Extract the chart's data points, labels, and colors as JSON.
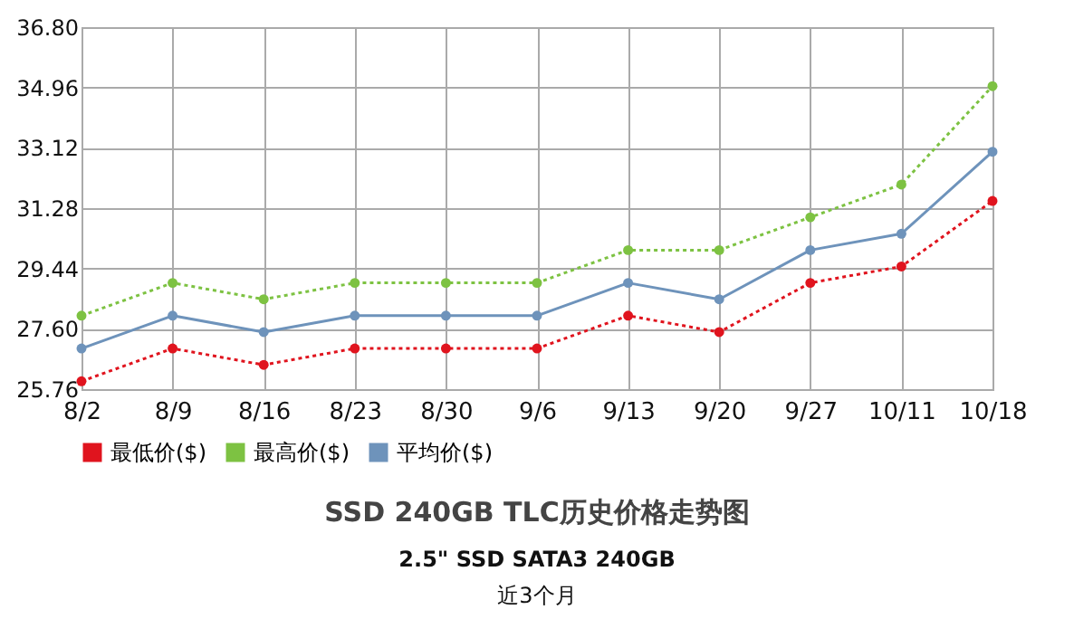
{
  "chart_data": {
    "type": "line",
    "title": "SSD 240GB TLC历史价格走势图",
    "subtitle": "2.5\" SSD SATA3 240GB",
    "annotations": [
      "近3个月"
    ],
    "categories": [
      "8/2",
      "8/9",
      "8/16",
      "8/23",
      "8/30",
      "9/6",
      "9/13",
      "9/20",
      "9/27",
      "10/11",
      "10/18"
    ],
    "series": [
      {
        "name": "最低价($)",
        "color": "#e0141e",
        "line_style": "dotted",
        "values": [
          26,
          27,
          26.5,
          27,
          27,
          27,
          28,
          27.5,
          29,
          29.5,
          31.5
        ]
      },
      {
        "name": "最高价($)",
        "color": "#7dc242",
        "line_style": "dotted",
        "values": [
          28,
          29,
          28.5,
          29,
          29,
          29,
          30,
          30,
          31,
          32,
          35
        ]
      },
      {
        "name": "平均价($)",
        "color": "#6e93bb",
        "line_style": "solid",
        "values": [
          27,
          28,
          27.5,
          28,
          28,
          28,
          29,
          28.5,
          30,
          30.5,
          33
        ]
      }
    ],
    "ylim": [
      25.76,
      36.8
    ],
    "yticks": [
      25.76,
      {
        "value": 27.6,
        "label": "27.60"
      },
      29.44,
      31.28,
      33.12,
      34.96,
      {
        "value": 36.8,
        "label": "36.80"
      }
    ],
    "grid": true,
    "legend": "bottom",
    "marker": "circle"
  }
}
